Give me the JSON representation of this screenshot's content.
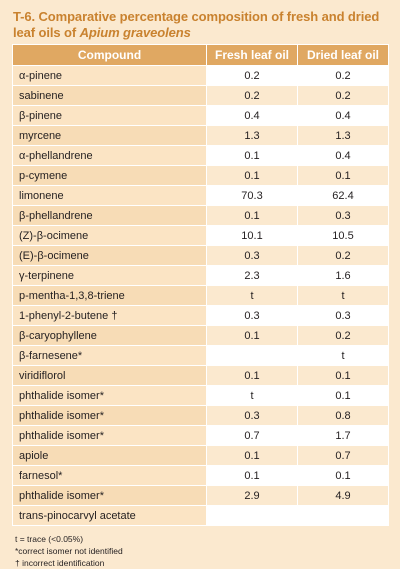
{
  "title_prefix": "T-6. Comparative percentage composition of fresh and dried leaf oils of ",
  "title_species": "Apium graveolens",
  "headers": {
    "compound": "Compound",
    "fresh": "Fresh leaf oil",
    "dried": "Dried leaf oil"
  },
  "rows": [
    {
      "compound": "α-pinene",
      "fresh": "0.2",
      "dried": "0.2"
    },
    {
      "compound": "sabinene",
      "fresh": "0.2",
      "dried": "0.2"
    },
    {
      "compound": "β-pinene",
      "fresh": "0.4",
      "dried": "0.4"
    },
    {
      "compound": "myrcene",
      "fresh": "1.3",
      "dried": "1.3"
    },
    {
      "compound": "α-phellandrene",
      "fresh": "0.1",
      "dried": "0.4"
    },
    {
      "compound": "p-cymene",
      "fresh": "0.1",
      "dried": "0.1"
    },
    {
      "compound": "limonene",
      "fresh": "70.3",
      "dried": "62.4"
    },
    {
      "compound": "β-phellandrene",
      "fresh": "0.1",
      "dried": "0.3"
    },
    {
      "compound": "(Z)-β-ocimene",
      "fresh": "10.1",
      "dried": "10.5"
    },
    {
      "compound": "(E)-β-ocimene",
      "fresh": "0.3",
      "dried": "0.2"
    },
    {
      "compound": "γ-terpinene",
      "fresh": "2.3",
      "dried": "1.6"
    },
    {
      "compound": "p-mentha-1,3,8-triene",
      "fresh": "t",
      "dried": "t"
    },
    {
      "compound": "1-phenyl-2-butene †",
      "fresh": "0.3",
      "dried": "0.3"
    },
    {
      "compound": "β-caryophyllene",
      "fresh": "0.1",
      "dried": "0.2"
    },
    {
      "compound": "β-farnesene*",
      "fresh": "",
      "dried": "t"
    },
    {
      "compound": "viridiflorol",
      "fresh": "0.1",
      "dried": "0.1"
    },
    {
      "compound": "phthalide isomer*",
      "fresh": "t",
      "dried": "0.1"
    },
    {
      "compound": "phthalide isomer*",
      "fresh": "0.3",
      "dried": "0.8"
    },
    {
      "compound": "phthalide isomer*",
      "fresh": "0.7",
      "dried": "1.7"
    },
    {
      "compound": "apiole",
      "fresh": "0.1",
      "dried": "0.7"
    },
    {
      "compound": "farnesol*",
      "fresh": "0.1",
      "dried": "0.1"
    },
    {
      "compound": "phthalide isomer*",
      "fresh": "2.9",
      "dried": "4.9"
    },
    {
      "compound": "trans-pinocarvyl acetate",
      "fresh": "",
      "dried": ""
    }
  ],
  "notes": [
    "t = trace (<0.05%)",
    "*correct isomer not identified",
    "† incorrect identification"
  ],
  "colors": {
    "title": "#c9822f",
    "header_bg": "#e0a862",
    "page_bg": "#fbe9cf"
  }
}
